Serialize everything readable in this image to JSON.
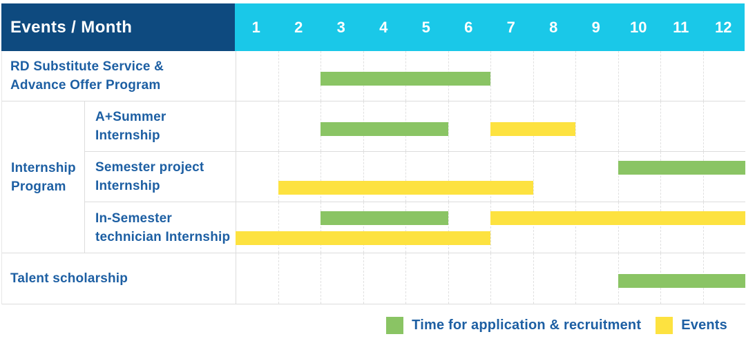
{
  "header": {
    "title": "Events / Month",
    "months": [
      "1",
      "2",
      "3",
      "4",
      "5",
      "6",
      "7",
      "8",
      "9",
      "10",
      "11",
      "12"
    ]
  },
  "colors": {
    "navy": "#0e4a7f",
    "cyan": "#1ac8e8",
    "green": "#8ac464",
    "yellow": "#fde240",
    "label_blue": "#1d5fa3"
  },
  "legend": [
    {
      "label": "Time for application & recruitment",
      "series": "application",
      "color": "#8ac464"
    },
    {
      "label": "Events",
      "series": "events",
      "color": "#fde240"
    }
  ],
  "chart_data": {
    "type": "gantt",
    "title": "Events / Month",
    "x_axis": {
      "unit": "month",
      "ticks": [
        1,
        2,
        3,
        4,
        5,
        6,
        7,
        8,
        9,
        10,
        11,
        12
      ],
      "range": [
        1,
        12
      ]
    },
    "series_names": {
      "application": "Time for application & recruitment",
      "events": "Events"
    },
    "group_label": "Internship Program",
    "group_label_lines": [
      "Internship",
      "Program"
    ],
    "rows": [
      {
        "label": "RD Substitute Service & Advance Offer Program",
        "label_lines": [
          "RD Substitute Service &",
          "Advance Offer Program"
        ],
        "group": null,
        "bars": [
          {
            "series": "application",
            "start_month": 3,
            "end_month": 6,
            "track": "center"
          }
        ]
      },
      {
        "label": "A+Summer Internship",
        "label_lines": [
          "A+Summer",
          "Internship"
        ],
        "group": "Internship Program",
        "bars": [
          {
            "series": "application",
            "start_month": 3,
            "end_month": 5,
            "track": "center"
          },
          {
            "series": "events",
            "start_month": 7,
            "end_month": 8,
            "track": "center"
          }
        ]
      },
      {
        "label": "Semester project Internship",
        "label_lines": [
          "Semester project",
          "Internship"
        ],
        "group": "Internship Program",
        "bars": [
          {
            "series": "application",
            "start_month": 10,
            "end_month": 12,
            "track": "top"
          },
          {
            "series": "events",
            "start_month": 2,
            "end_month": 7,
            "track": "bottom"
          }
        ]
      },
      {
        "label": "In-Semester technician Internship",
        "label_lines": [
          "In-Semester",
          "technician Internship"
        ],
        "group": "Internship Program",
        "bars": [
          {
            "series": "application",
            "start_month": 3,
            "end_month": 5,
            "track": "top"
          },
          {
            "series": "events",
            "start_month": 7,
            "end_month": 12,
            "track": "top"
          },
          {
            "series": "events",
            "start_month": 1,
            "end_month": 6,
            "track": "bottom"
          }
        ]
      },
      {
        "label": "Talent scholarship",
        "label_lines": [
          "Talent scholarship"
        ],
        "group": null,
        "bars": [
          {
            "series": "application",
            "start_month": 10,
            "end_month": 12,
            "track": "center"
          }
        ]
      }
    ]
  }
}
